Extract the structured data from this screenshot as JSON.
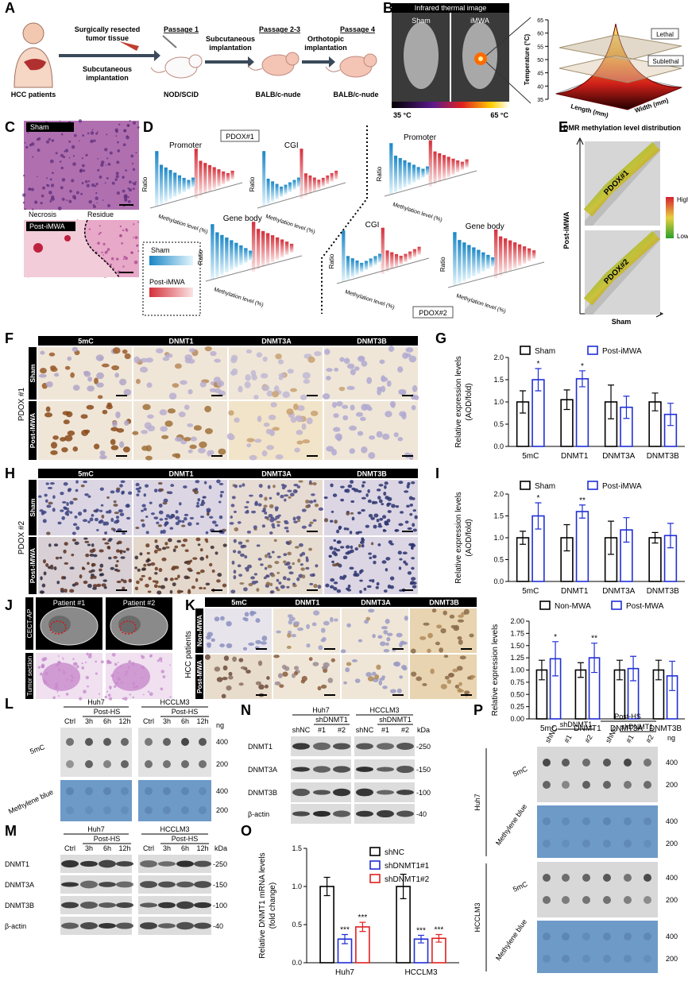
{
  "labels": {
    "a": "A",
    "b": "B",
    "c": "C",
    "d": "D",
    "e": "E",
    "f": "F",
    "g": "G",
    "h": "H",
    "i": "I",
    "j": "J",
    "k": "K",
    "l": "L",
    "m": "M",
    "n": "N",
    "o": "O",
    "p": "P"
  },
  "panel_a": {
    "patients": "HCC patients",
    "tissue": [
      "Surgically resected",
      "tumor tissue"
    ],
    "implant1": [
      "Subcutaneous",
      "implantation"
    ],
    "passage1": "Passage 1",
    "mouse1": "NOD/SCID",
    "passage2": "Passage 2-3",
    "implant2": [
      "Subcutaneous",
      "implantation"
    ],
    "mouse2": "BALB/c-nude",
    "passage4": "Passage 4",
    "implant3": [
      "Orthotopic",
      "implantation"
    ],
    "mouse3": "BALB/c-nude"
  },
  "panel_b": {
    "title": "Infrared thermal image",
    "sham": "Sham",
    "imwa": "iMWA",
    "scale_min": "35 °C",
    "scale_max": "65 °C",
    "z_label": "Temperature (°C)",
    "x_label": "Length (mm)",
    "y_label": "Width (mm)",
    "lethal": "Lethal",
    "sublethal": "Sublethal",
    "zticks": [
      35,
      40,
      45,
      50,
      55,
      60,
      65
    ]
  },
  "panel_c": {
    "sham": "Sham",
    "post": "Post-iMWA",
    "necrosis": "Necrosis",
    "residue": "Residue"
  },
  "panel_d": {
    "pdox1": "PDOX#1",
    "pdox2": "PDOX#2",
    "promoter": "Promoter",
    "cgi": "CGI",
    "gene_body": "Gene body",
    "ratio": "Ratio",
    "xlabel": "Methylation level (%)",
    "legend_sham": "Sham",
    "legend_post": "Post-iMWA"
  },
  "panel_e": {
    "title": "DMR methylation level distribution",
    "ylabel": "Post-iMWA",
    "xlabel": "Sham",
    "pdox1": "PDOX#1",
    "pdox2": "PDOX#2",
    "high": "High",
    "low": "Low"
  },
  "panel_f": {
    "columns": [
      "5mC",
      "DNMT1",
      "DNMT3A",
      "DNMT3B"
    ],
    "rows": [
      "Sham",
      "Post-iMWA"
    ],
    "group": "PDOX #1"
  },
  "panel_h": {
    "columns": [
      "5mC",
      "DNMT1",
      "DNMT3A",
      "DNMT3B"
    ],
    "rows": [
      "Sham",
      "Post-iMWA"
    ],
    "group": "PDOX #2"
  },
  "panel_j": {
    "patients": [
      "Patient #1",
      "Patient #2"
    ],
    "rows": [
      "CECT-AP",
      "Tumor section"
    ]
  },
  "panel_k": {
    "columns": [
      "5mC",
      "DNMT1",
      "DNMT3A",
      "DNMT3B"
    ],
    "rows": [
      "Non-MWA",
      "Post-MWA"
    ],
    "group": "HCC patients"
  },
  "panel_l": {
    "lines": [
      "Huh7",
      "HCCLM3"
    ],
    "treatment": "Post-HS",
    "lanes": [
      "Ctrl",
      "3h",
      "6h",
      "12h"
    ],
    "unit": "ng",
    "amounts": [
      400,
      200
    ],
    "rows": [
      "5mC",
      "Methylene blue"
    ]
  },
  "panel_m": {
    "lines": [
      "Huh7",
      "HCCLM3"
    ],
    "treatment": "Post-HS",
    "lanes": [
      "Ctrl",
      "3h",
      "6h",
      "12h"
    ],
    "unit": "kDa",
    "proteins": [
      "DNMT1",
      "DNMT3A",
      "DNMT3B",
      "β-actin"
    ],
    "markers": [
      "-250",
      "-150",
      "-100",
      "-40"
    ]
  },
  "panel_n": {
    "lines": [
      "Huh7",
      "HCCLM3"
    ],
    "group": "shDNMT1",
    "lanes": [
      "shNC",
      "#1",
      "#2"
    ],
    "unit": "kDa",
    "proteins": [
      "DNMT1",
      "DNMT3A",
      "DNMT3B",
      "β-actin"
    ],
    "markers": [
      "-250",
      "-150",
      "-100",
      "-40"
    ]
  },
  "panel_p": {
    "lanes": [
      "shNC",
      "#1",
      "#2"
    ],
    "group": "shDNMT1",
    "treatment": "Post-HS",
    "unit": "ng",
    "amounts": [
      400,
      200
    ],
    "rows": [
      "5mC",
      "Methylene blue"
    ],
    "lines": [
      "Huh7",
      "HCCLM3"
    ]
  },
  "chart_g": {
    "type": "bar",
    "ylabel": [
      "Relative expression levels",
      "(AOD/fold)"
    ],
    "categories": [
      "5mC",
      "DNMT1",
      "DNMT3A",
      "DNMT3B"
    ],
    "series": [
      {
        "name": "Sham",
        "color": "#000000",
        "values": [
          1.0,
          1.05,
          1.0,
          1.0
        ],
        "errors": [
          0.25,
          0.22,
          0.38,
          0.2
        ]
      },
      {
        "name": "Post-iMWA",
        "color": "#1f2fd6",
        "values": [
          1.5,
          1.52,
          0.88,
          0.72
        ],
        "errors": [
          0.25,
          0.18,
          0.25,
          0.25
        ],
        "significance": [
          "*",
          "*",
          null,
          null
        ]
      }
    ],
    "ylim": [
      0,
      2
    ],
    "yticks": [
      {
        "value": 0,
        "label": "0.0"
      },
      {
        "value": 0.5,
        "label": "0.5"
      },
      {
        "value": 1,
        "label": "1.0"
      },
      {
        "value": 1.5,
        "label": "1.5"
      },
      {
        "value": 2,
        "label": "2.0"
      }
    ]
  },
  "chart_i": {
    "type": "bar",
    "ylabel": [
      "Relative expression levels",
      "(AOD/fold)"
    ],
    "categories": [
      "5mC",
      "DNMT1",
      "DNMT3A",
      "DNMT3B"
    ],
    "series": [
      {
        "name": "Sham",
        "color": "#000000",
        "values": [
          1.0,
          1.0,
          1.0,
          1.0
        ],
        "errors": [
          0.15,
          0.3,
          0.38,
          0.12
        ]
      },
      {
        "name": "Post-iMWA",
        "color": "#1f2fd6",
        "values": [
          1.5,
          1.6,
          1.18,
          1.05
        ],
        "errors": [
          0.3,
          0.15,
          0.28,
          0.28
        ],
        "significance": [
          "*",
          "**",
          null,
          null
        ]
      }
    ],
    "ylim": [
      0,
      2
    ],
    "yticks": [
      {
        "value": 0,
        "label": "0.0"
      },
      {
        "value": 0.5,
        "label": "0.5"
      },
      {
        "value": 1,
        "label": "1.0"
      },
      {
        "value": 1.5,
        "label": "1.5"
      },
      {
        "value": 2,
        "label": "2.0"
      }
    ]
  },
  "chart_k": {
    "type": "bar",
    "ylabel": [
      "Relative expression levels"
    ],
    "categories": [
      "5mC",
      "DNMT1",
      "DNMT3A",
      "DNMT3B"
    ],
    "series": [
      {
        "name": "Non-MWA",
        "color": "#000000",
        "values": [
          1.0,
          1.0,
          1.0,
          1.0
        ],
        "errors": [
          0.2,
          0.15,
          0.2,
          0.2
        ]
      },
      {
        "name": "Post-MWA",
        "color": "#1f2fd6",
        "values": [
          1.23,
          1.25,
          1.03,
          0.88
        ],
        "errors": [
          0.35,
          0.3,
          0.25,
          0.3
        ],
        "significance": [
          "*",
          "**",
          null,
          null
        ]
      }
    ],
    "ylim": [
      0,
      2
    ],
    "yticks": [
      {
        "value": 0,
        "label": "0.00"
      },
      {
        "value": 0.25,
        "label": "0.25"
      },
      {
        "value": 0.5,
        "label": "0.50"
      },
      {
        "value": 0.75,
        "label": "0.75"
      },
      {
        "value": 1,
        "label": "1.00"
      },
      {
        "value": 1.25,
        "label": "1.25"
      },
      {
        "value": 1.5,
        "label": "1.50"
      },
      {
        "value": 1.75,
        "label": "1.75"
      },
      {
        "value": 2,
        "label": "2.00"
      }
    ]
  },
  "chart_o": {
    "type": "bar",
    "ylabel": [
      "Relative DNMT1 mRNA levels",
      "(fold change)"
    ],
    "categories": [
      "Huh7",
      "HCCLM3"
    ],
    "series": [
      {
        "name": "shNC",
        "color": "#000000",
        "values": [
          1.0,
          1.0
        ],
        "errors": [
          0.12,
          0.16
        ]
      },
      {
        "name": "shDNMT1#1",
        "color": "#1f2fd6",
        "values": [
          0.31,
          0.31
        ],
        "errors": [
          0.06,
          0.05
        ],
        "significance": [
          "***",
          "***"
        ]
      },
      {
        "name": "shDNMT1#2",
        "color": "#e02020",
        "values": [
          0.47,
          0.32
        ],
        "errors": [
          0.06,
          0.05
        ],
        "significance": [
          "***",
          "***"
        ]
      }
    ],
    "ylim": [
      0,
      1.5
    ],
    "yticks": [
      {
        "value": 0,
        "label": "0.0"
      },
      {
        "value": 0.5,
        "label": "0.5"
      },
      {
        "value": 1,
        "label": "1.0"
      },
      {
        "value": 1.5,
        "label": "1.5"
      }
    ]
  }
}
